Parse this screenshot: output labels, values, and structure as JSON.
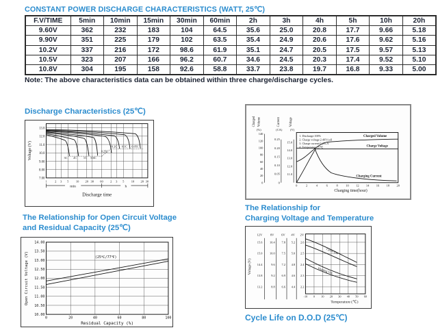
{
  "page_title": "CONSTANT POWER DISCHARGE CHARACTERISTICS (WATT, 25℃)",
  "note": "Note: The above characteristics data can be obtained within three charge/discharge cycles.",
  "table": {
    "headers": [
      "F.V/TIME",
      "5min",
      "10min",
      "15min",
      "30min",
      "60min",
      "2h",
      "3h",
      "4h",
      "5h",
      "10h",
      "20h"
    ],
    "rows": [
      [
        "9.60V",
        "362",
        "232",
        "183",
        "104",
        "64.5",
        "35.6",
        "25.0",
        "20.8",
        "17.7",
        "9.66",
        "5.18"
      ],
      [
        "9.90V",
        "351",
        "225",
        "179",
        "102",
        "63.5",
        "35.4",
        "24.9",
        "20.6",
        "17.6",
        "9.62",
        "5.16"
      ],
      [
        "10.2V",
        "337",
        "216",
        "172",
        "98.6",
        "61.9",
        "35.1",
        "24.7",
        "20.5",
        "17.5",
        "9.57",
        "5.13"
      ],
      [
        "10.5V",
        "323",
        "207",
        "166",
        "96.2",
        "60.7",
        "34.6",
        "24.5",
        "20.3",
        "17.4",
        "9.52",
        "5.10"
      ],
      [
        "10.8V",
        "304",
        "195",
        "158",
        "92.6",
        "58.8",
        "33.7",
        "23.8",
        "19.7",
        "16.8",
        "9.33",
        "5.00"
      ]
    ]
  },
  "figures": {
    "discharge": {
      "title": "Discharge Characteristics (25℃)",
      "ylabel": "Voltage (V)",
      "yticks": [
        "13.0",
        "12.0",
        "11.0",
        "10.0",
        "9.00",
        "8.00",
        "7.00"
      ],
      "xticks_min": [
        "1",
        "2",
        "3",
        "5",
        "10",
        "20",
        "30",
        "60"
      ],
      "xticks_h": [
        "2",
        "3",
        "5",
        "10",
        "20",
        "30"
      ],
      "x_unit_min": "min",
      "x_unit_h": "h",
      "xlabel": "Discharge time",
      "curve_labels": [
        "3C",
        "2C",
        "1C",
        "0.6C",
        "0.25C",
        "0.2C",
        "0.1C",
        "0.05C"
      ]
    },
    "charging": {
      "axis_groups": [
        {
          "label": "Charged Volume",
          "unit": "(%)",
          "ticks": [
            "140",
            "120",
            "100",
            "80",
            "60",
            "40",
            "20",
            "0"
          ]
        },
        {
          "label": "Current",
          "unit": "(CA)",
          "ticks": [
            "0.25",
            "0.20",
            "0.15",
            "0.10",
            "0.05",
            "0"
          ]
        },
        {
          "label": "Voltage",
          "unit": "(V)",
          "ticks": [
            "15.0",
            "14.0",
            "13.0",
            "12.0",
            "11.0"
          ]
        }
      ],
      "notes": [
        "1. Discharge:100%",
        "2. Charge voltage:2.40V/cell",
        "3. Charge current:0.25CA",
        "4. Temperature:25℃"
      ],
      "curve_labels": {
        "volume": "Charged Volume",
        "voltage": "Charge Voltage",
        "current": "Charging Current"
      },
      "xticks": [
        "0",
        "2",
        "4",
        "6",
        "8",
        "10",
        "12",
        "14",
        "16",
        "18",
        "20"
      ],
      "xlabel": "Charging time(hour)"
    },
    "ocv": {
      "title_line1": "The Relationship for Open Circuit Voltage",
      "title_line2": "and Residual Capacity (25℃)",
      "ylabel": "Open Circuit Voltage (V)",
      "yticks": [
        "14.00",
        "13.50",
        "13.00",
        "12.50",
        "12.00",
        "11.50",
        "11.00",
        "10.50",
        "10.00"
      ],
      "xticks": [
        "0",
        "20",
        "40",
        "60",
        "80",
        "100"
      ],
      "xlabel": "Residual Capacity (%)",
      "annotation": "(25℃/77℉)"
    },
    "temp": {
      "title_line1": "The Relationship for",
      "title_line2": "Charging Voltage and Temperature",
      "ylabel": "Voltage (V)",
      "columns": [
        {
          "header": "12V",
          "values": [
            "15.6",
            "15.0",
            "14.4",
            "13.8",
            "13.2"
          ]
        },
        {
          "header": "8V",
          "values": [
            "10.4",
            "10.0",
            "9.6",
            "9.2",
            "8.8"
          ]
        },
        {
          "header": "6V",
          "values": [
            "7.8",
            "7.5",
            "7.2",
            "6.9",
            "6.6"
          ]
        },
        {
          "header": "4V",
          "values": [
            "5.2",
            "5.0",
            "4.8",
            "4.6",
            "4.4"
          ]
        },
        {
          "header": "2V",
          "values": [
            "2.6",
            "2.5",
            "2.4",
            "2.3",
            "2.2"
          ]
        }
      ],
      "xticks": [
        "-10",
        "0",
        "10",
        "20",
        "30",
        "40",
        "50",
        "60"
      ],
      "xlabel": "Temperature (℃)",
      "band_labels": [
        "Cycle Use",
        "Floating Use"
      ]
    },
    "cycle_life": {
      "title": "Cycle Life on D.O.D (25℃)"
    }
  },
  "colors": {
    "accent_blue": "#2b8cce",
    "text_dark": "#1c2333"
  },
  "chart_data": [
    {
      "id": "discharge_characteristics",
      "type": "line",
      "title": "Discharge Characteristics (25℃)",
      "xlabel": "Discharge time",
      "ylabel": "Voltage (V)",
      "x_scale": "log",
      "x_range": [
        "1min",
        "30h"
      ],
      "ylim": [
        7.0,
        13.5
      ],
      "series": [
        {
          "name": "3C",
          "points": [
            [
              "1min",
              12.1
            ],
            [
              "3min",
              11.7
            ],
            [
              "5min",
              11.0
            ],
            [
              "6min",
              9.6
            ]
          ]
        },
        {
          "name": "2C",
          "points": [
            [
              "1min",
              12.3
            ],
            [
              "5min",
              11.9
            ],
            [
              "10min",
              11.0
            ],
            [
              "11min",
              9.6
            ]
          ]
        },
        {
          "name": "1C",
          "points": [
            [
              "1min",
              12.5
            ],
            [
              "10min",
              12.0
            ],
            [
              "22min",
              11.0
            ],
            [
              "25min",
              9.6
            ]
          ]
        },
        {
          "name": "0.6C",
          "points": [
            [
              "1min",
              12.6
            ],
            [
              "20min",
              12.0
            ],
            [
              "42min",
              11.0
            ],
            [
              "46min",
              9.7
            ]
          ]
        },
        {
          "name": "0.25C",
          "points": [
            [
              "1min",
              12.8
            ],
            [
              "1h",
              12.0
            ],
            [
              "2.1h",
              11.0
            ],
            [
              "2.3h",
              10.1
            ]
          ]
        },
        {
          "name": "0.2C",
          "points": [
            [
              "1min",
              12.85
            ],
            [
              "1.5h",
              12.1
            ],
            [
              "3.3h",
              11.0
            ],
            [
              "3.6h",
              10.5
            ]
          ]
        },
        {
          "name": "0.1C",
          "points": [
            [
              "1min",
              12.9
            ],
            [
              "3h",
              12.2
            ],
            [
              "7h",
              11.0
            ],
            [
              "7.7h",
              10.5
            ]
          ]
        },
        {
          "name": "0.05C",
          "points": [
            [
              "1min",
              12.95
            ],
            [
              "6h",
              12.4
            ],
            [
              "16h",
              11.0
            ],
            [
              "17.5h",
              10.5
            ]
          ]
        }
      ]
    },
    {
      "id": "charging_characteristics",
      "type": "line",
      "xlabel": "Charging time(hour)",
      "x_range": [
        0,
        20
      ],
      "series": [
        {
          "name": "Charged Volume",
          "unit": "%",
          "points": [
            [
              0,
              55
            ],
            [
              2,
              70
            ],
            [
              4,
              95
            ],
            [
              8,
              105
            ],
            [
              12,
              110
            ],
            [
              20,
              113
            ]
          ]
        },
        {
          "name": "Charge Voltage",
          "unit": "V",
          "points": [
            [
              0,
              11.0
            ],
            [
              2,
              12.8
            ],
            [
              3.8,
              14.3
            ],
            [
              20,
              14.3
            ]
          ]
        },
        {
          "name": "Charging Current",
          "unit": "CA",
          "points": [
            [
              0,
              0.2
            ],
            [
              3.5,
              0.2
            ],
            [
              6,
              0.09
            ],
            [
              10,
              0.04
            ],
            [
              20,
              0.01
            ]
          ]
        }
      ]
    },
    {
      "id": "ocv_vs_residual_capacity",
      "type": "line",
      "xlabel": "Residual Capacity (%)",
      "ylabel": "Open Circuit Voltage (V)",
      "xlim": [
        0,
        100
      ],
      "ylim": [
        10.0,
        14.0
      ],
      "series": [
        {
          "name": "upper line",
          "points": [
            [
              0,
              11.85
            ],
            [
              100,
              13.1
            ]
          ]
        },
        {
          "name": "lower line",
          "points": [
            [
              0,
              11.65
            ],
            [
              100,
              12.95
            ]
          ]
        }
      ]
    },
    {
      "id": "charging_voltage_vs_temperature",
      "type": "line",
      "xlabel": "Temperature (℃)",
      "xlim": [
        -10,
        60
      ],
      "unit": "V per 2V cell",
      "series": [
        {
          "name": "Cycle Use upper",
          "points": [
            [
              -10,
              2.62
            ],
            [
              20,
              2.52
            ],
            [
              50,
              2.41
            ]
          ]
        },
        {
          "name": "Cycle Use lower",
          "points": [
            [
              -10,
              2.57
            ],
            [
              20,
              2.47
            ],
            [
              50,
              2.37
            ]
          ]
        },
        {
          "name": "Floating Use upper",
          "points": [
            [
              -10,
              2.46
            ],
            [
              20,
              2.34
            ],
            [
              50,
              2.27
            ]
          ]
        },
        {
          "name": "Floating Use lower",
          "points": [
            [
              -10,
              2.41
            ],
            [
              20,
              2.29
            ],
            [
              50,
              2.24
            ]
          ]
        }
      ]
    }
  ]
}
